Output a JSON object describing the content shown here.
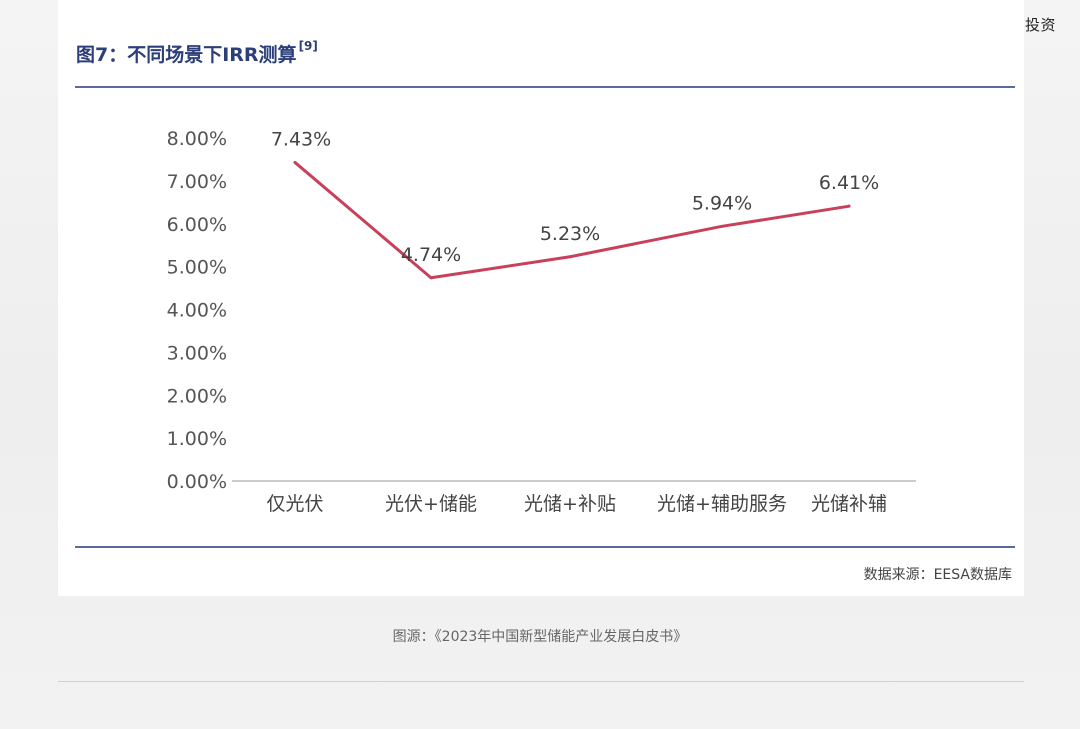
{
  "watermark": "@微信公众号：九鼎投资",
  "figure": {
    "title": "图7：不同场景下IRR测算",
    "ref": "[9]",
    "source": "数据来源：EESA数据库"
  },
  "caption": "图源：《2023年中国新型储能产业发展白皮书》",
  "colors": {
    "line": "#c8405a",
    "axis": "#999999",
    "title": "#2c3f7a"
  },
  "chart_data": {
    "type": "line",
    "title": "",
    "xlabel": "",
    "ylabel": "",
    "categories": [
      "仅光伏",
      "光伏+储能",
      "光储+补贴",
      "光储+辅助服务",
      "光储补辅"
    ],
    "series": [
      {
        "values": [
          7.43,
          4.74,
          5.23,
          5.94,
          6.41
        ]
      }
    ],
    "data_labels": [
      "7.43%",
      "4.74%",
      "5.23%",
      "5.94%",
      "6.41%"
    ],
    "ylim": [
      0,
      8
    ],
    "yticks": [
      "0.00%",
      "1.00%",
      "2.00%",
      "3.00%",
      "4.00%",
      "5.00%",
      "6.00%",
      "7.00%",
      "8.00%"
    ],
    "grid": false,
    "legend": "none"
  }
}
